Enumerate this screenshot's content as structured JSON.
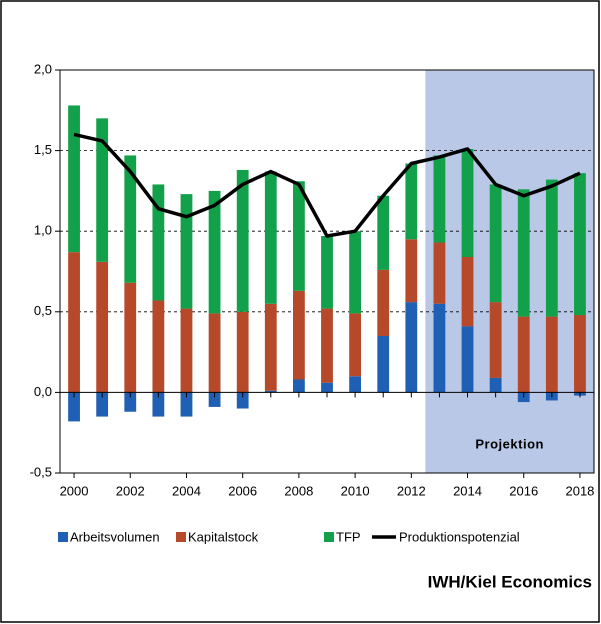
{
  "chart_data": {
    "type": "stacked-bar-line",
    "x": [
      2000,
      2001,
      2002,
      2003,
      2004,
      2005,
      2006,
      2007,
      2008,
      2009,
      2010,
      2011,
      2012,
      2013,
      2014,
      2015,
      2016,
      2017,
      2018
    ],
    "xlim": [
      1999.5,
      2018.5
    ],
    "xticks": [
      2000,
      2002,
      2004,
      2006,
      2008,
      2010,
      2012,
      2014,
      2016,
      2018
    ],
    "ylim": [
      -0.5,
      2.0
    ],
    "yticks": [
      {
        "value": -0.5,
        "label": "-0,5"
      },
      {
        "value": 0,
        "label": "0,0"
      },
      {
        "value": 0.5,
        "label": "0,5"
      },
      {
        "value": 1.0,
        "label": "1,0"
      },
      {
        "value": 1.5,
        "label": "1,5"
      },
      {
        "value": 2.0,
        "label": "2,0"
      }
    ],
    "grid": true,
    "series": [
      {
        "name": "Arbeitsvolumen",
        "kind": "bar",
        "color": "#1f5fb4",
        "values": [
          -0.18,
          -0.15,
          -0.12,
          -0.15,
          -0.15,
          -0.09,
          -0.1,
          0.01,
          0.08,
          0.06,
          0.1,
          0.35,
          0.56,
          0.55,
          0.41,
          0.09,
          -0.06,
          -0.05,
          -0.02
        ]
      },
      {
        "name": "Kapitalstock",
        "kind": "bar",
        "color": "#b5492a",
        "values": [
          0.87,
          0.81,
          0.68,
          0.57,
          0.52,
          0.49,
          0.5,
          0.54,
          0.55,
          0.46,
          0.39,
          0.41,
          0.39,
          0.38,
          0.43,
          0.47,
          0.47,
          0.47,
          0.48
        ]
      },
      {
        "name": "TFP",
        "kind": "bar",
        "color": "#13a04a",
        "values": [
          0.91,
          0.89,
          0.79,
          0.72,
          0.71,
          0.76,
          0.88,
          0.82,
          0.68,
          0.45,
          0.51,
          0.46,
          0.47,
          0.54,
          0.67,
          0.73,
          0.79,
          0.85,
          0.88
        ]
      },
      {
        "name": "Produktionspotenzial",
        "kind": "line",
        "color": "#000000",
        "values": [
          1.6,
          1.56,
          1.37,
          1.14,
          1.09,
          1.16,
          1.29,
          1.37,
          1.29,
          0.97,
          1.0,
          1.22,
          1.42,
          1.46,
          1.51,
          1.29,
          1.22,
          1.28,
          1.36
        ]
      }
    ],
    "shaded_region": {
      "label": "Projektion",
      "from": 2012.5,
      "to": 2018.5,
      "color": "#b8c8e6"
    },
    "source": "IWH/Kiel Economics"
  }
}
